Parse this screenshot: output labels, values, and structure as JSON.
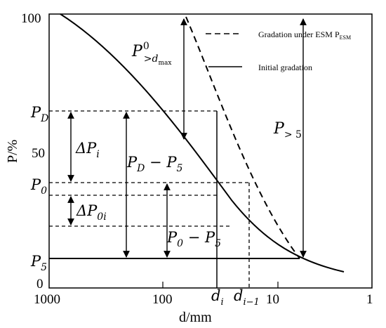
{
  "axes": {
    "xlabel": "d/mm",
    "ylabel": "P/%",
    "x_ticks": [
      "1000",
      "100",
      "10",
      "1"
    ],
    "y_ticks": [
      "100",
      "50",
      "0"
    ]
  },
  "legend": {
    "dashed": "Gradation under ESM P",
    "dashed_sub": "ESM",
    "solid": "Initial gradation"
  },
  "levels": {
    "PD": {
      "base": "P",
      "sub": "D"
    },
    "P0": {
      "base": "P",
      "sub": "0"
    },
    "P5": {
      "base": "P",
      "sub": "5"
    }
  },
  "x_marks": {
    "di": {
      "base": "d",
      "sub": "i"
    },
    "di1": {
      "base": "d",
      "sub": "i−1"
    }
  },
  "annotations": {
    "p_gt_dmax": {
      "base": "P",
      "sup": "0",
      "sub": ">",
      "subsub": "max",
      "subd": "d"
    },
    "delta_pi": {
      "base": "ΔP",
      "sub": "i"
    },
    "pd_minus_p5": {
      "text": "P",
      "sub1": "D",
      "mid": " − P",
      "sub2": "5"
    },
    "p_gt5": {
      "base": "P",
      "sub": "> 5"
    },
    "delta_p0i": {
      "base": "ΔP",
      "sub": "0i"
    },
    "p0_minus_p5": {
      "text": "P",
      "sub1": "0",
      "mid": " − P",
      "sub2": "5"
    }
  }
}
